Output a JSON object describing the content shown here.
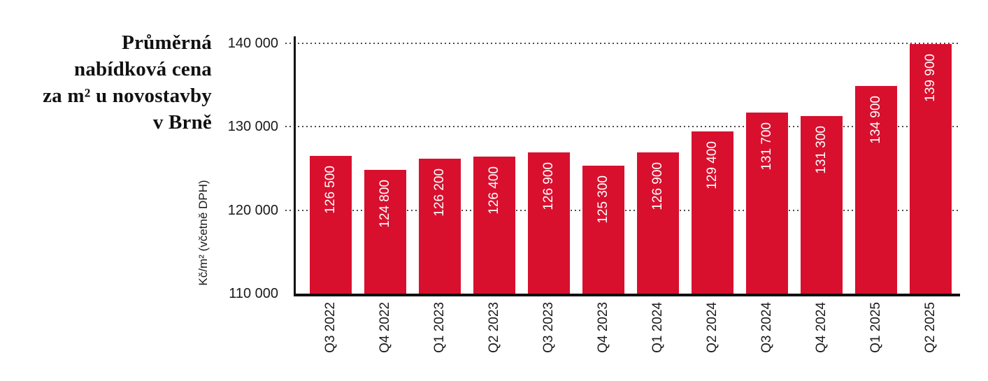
{
  "title": {
    "lines": [
      "Průměrná",
      "nabídková cena",
      "za m² u novostavby",
      "v Brně"
    ]
  },
  "colors": {
    "bar": "#d8102e",
    "axis": "#111111",
    "gridline": "#4a4a4a",
    "value_label": "#ffffff",
    "text": "#1a1a1a"
  },
  "chart_data": {
    "type": "bar",
    "title": "Průměrná nabídková cena za m² u novostavby v Brně",
    "ylabel": "Kč/m² (včetně DPH)",
    "xlabel": "",
    "categories": [
      "Q3 2022",
      "Q4 2022",
      "Q1 2023",
      "Q2 2023",
      "Q3 2023",
      "Q4 2023",
      "Q1 2024",
      "Q2 2024",
      "Q3 2024",
      "Q4 2024",
      "Q1 2025",
      "Q2 2025"
    ],
    "values": [
      126500,
      124800,
      126200,
      126400,
      126900,
      125300,
      126900,
      129400,
      131700,
      131300,
      134900,
      139900
    ],
    "value_labels": [
      "126 500",
      "124 800",
      "126 200",
      "126 400",
      "126 900",
      "125 300",
      "126 900",
      "129 400",
      "131 700",
      "131 300",
      "134 900",
      "139 900"
    ],
    "ylim": [
      110000,
      140000
    ],
    "yticks": [
      110000,
      120000,
      130000,
      140000
    ],
    "ytick_labels": [
      "110 000",
      "120 000",
      "130 000",
      "140 000"
    ],
    "grid": "horizontal dotted at 120000/130000/140000",
    "legend": "none",
    "bar_color": "#d8102e"
  }
}
